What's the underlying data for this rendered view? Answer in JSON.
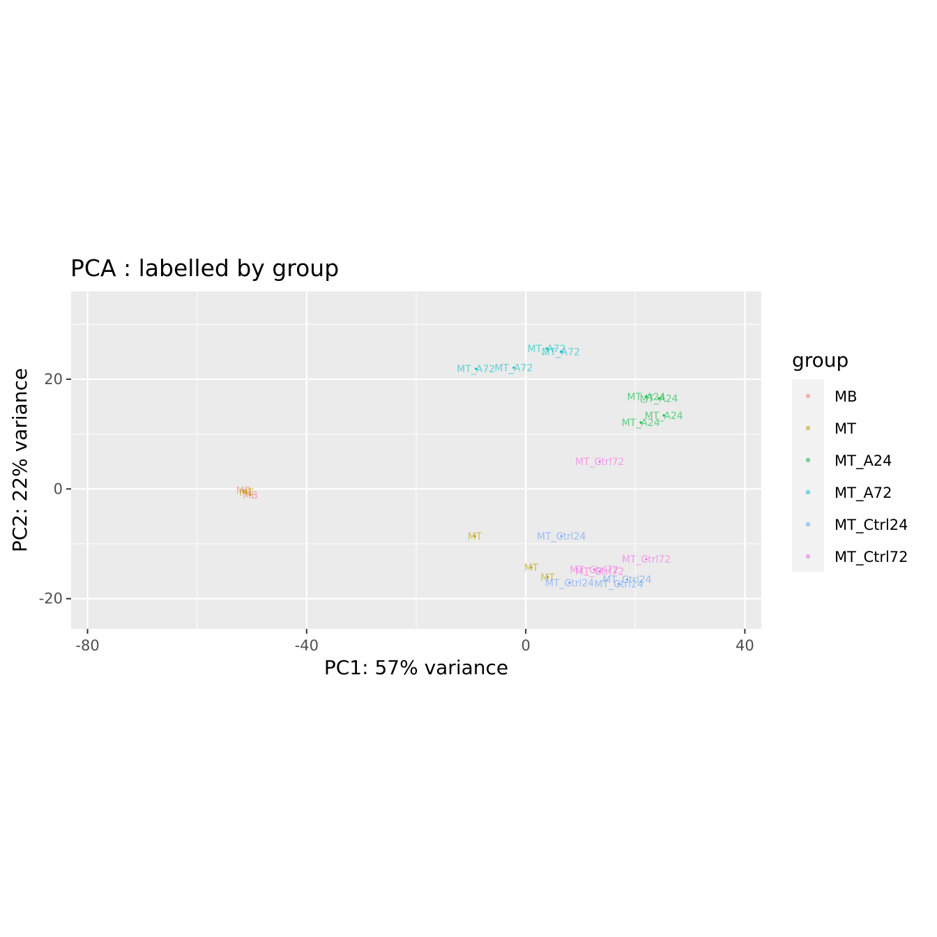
{
  "chart_data": {
    "type": "scatter",
    "title": "PCA : labelled by group",
    "xlabel": "PC1: 57% variance",
    "ylabel": "PC2: 22% variance",
    "xlim": [
      -83,
      43
    ],
    "ylim": [
      -25.5,
      36
    ],
    "xticks": [
      -80,
      -40,
      0,
      40
    ],
    "yticks": [
      -20,
      0,
      20
    ],
    "grid": true,
    "legend": {
      "title": "group",
      "position": "right",
      "items": [
        {
          "name": "MB",
          "color": "#F8766D"
        },
        {
          "name": "MT",
          "color": "#B79F00"
        },
        {
          "name": "MT_A24",
          "color": "#00BA38"
        },
        {
          "name": "MT_A72",
          "color": "#00BFC4"
        },
        {
          "name": "MT_Ctrl24",
          "color": "#619CFF"
        },
        {
          "name": "MT_Ctrl72",
          "color": "#F564E3"
        }
      ]
    },
    "series": [
      {
        "name": "MB",
        "color": "#F8766D",
        "points": [
          {
            "x": -51.5,
            "y": -0.3,
            "label": "MB"
          },
          {
            "x": -50.3,
            "y": -1.1,
            "label": "MB"
          }
        ]
      },
      {
        "name": "MT",
        "color": "#B79F00",
        "points": [
          {
            "x": -51.0,
            "y": -0.6,
            "label": "MT"
          },
          {
            "x": -9.3,
            "y": -8.6,
            "label": "MT"
          },
          {
            "x": 1.0,
            "y": -14.3,
            "label": "MT"
          },
          {
            "x": 4.0,
            "y": -16.1,
            "label": "MT"
          }
        ]
      },
      {
        "name": "MT_A24",
        "color": "#00BA38",
        "points": [
          {
            "x": 22.0,
            "y": 16.8,
            "label": "MT_A24"
          },
          {
            "x": 24.3,
            "y": 16.5,
            "label": "MT_A24"
          },
          {
            "x": 25.2,
            "y": 13.4,
            "label": "MT_A24"
          },
          {
            "x": 21.0,
            "y": 12.1,
            "label": "MT_A24"
          }
        ]
      },
      {
        "name": "MT_A72",
        "color": "#00BFC4",
        "points": [
          {
            "x": 3.8,
            "y": 25.6,
            "label": "MT_A72"
          },
          {
            "x": 6.4,
            "y": 25.0,
            "label": "MT_A72"
          },
          {
            "x": -9.1,
            "y": 21.9,
            "label": "MT_A72"
          },
          {
            "x": -2.2,
            "y": 22.1,
            "label": "MT_A72"
          }
        ]
      },
      {
        "name": "MT_Ctrl24",
        "color": "#619CFF",
        "points": [
          {
            "x": 6.5,
            "y": -8.6,
            "label": "MT_Ctrl24"
          },
          {
            "x": 8.0,
            "y": -17.1,
            "label": "MT_Ctrl24"
          },
          {
            "x": 18.5,
            "y": -16.5,
            "label": "MT_Ctrl24"
          },
          {
            "x": 17.0,
            "y": -17.3,
            "label": "MT_Ctrl24"
          }
        ]
      },
      {
        "name": "MT_Ctrl72",
        "color": "#F564E3",
        "points": [
          {
            "x": 13.5,
            "y": 5.0,
            "label": "MT_Ctrl72"
          },
          {
            "x": 22.0,
            "y": -12.8,
            "label": "MT_Ctrl72"
          },
          {
            "x": 12.5,
            "y": -14.7,
            "label": "MT_Ctrl72"
          },
          {
            "x": 13.5,
            "y": -15.0,
            "label": "MT_Ctrl72"
          }
        ]
      }
    ]
  }
}
